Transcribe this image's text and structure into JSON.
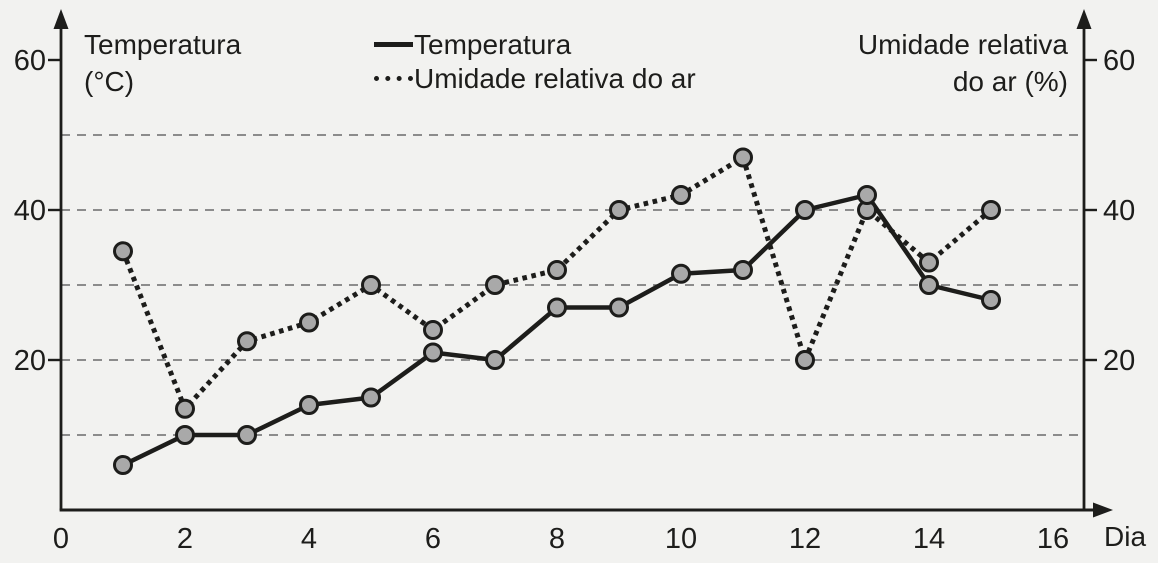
{
  "titles": {
    "left_line1": "Temperatura",
    "left_line2": "(°C)",
    "right_line1": "Umidade relativa",
    "right_line2": "do ar (%)",
    "x_axis": "Dia"
  },
  "legend": {
    "temperature_label": "Temperatura",
    "humidity_label": "Umidade relativa do ar"
  },
  "colors": {
    "ink": "#1d1d1b",
    "marker_fill": "#a9a9a9",
    "grid": "#6a6a6a",
    "background": "#f2f2f0"
  },
  "axes": {
    "left_ticks": [
      20,
      40,
      60
    ],
    "right_ticks": [
      20,
      40,
      60
    ],
    "x_ticks": [
      0,
      2,
      4,
      6,
      8,
      10,
      12,
      14,
      16
    ],
    "gridlines": [
      10,
      20,
      30,
      40,
      50
    ]
  },
  "chart_data": {
    "type": "line",
    "title": "",
    "xlabel": "Dia",
    "ylabel_left": "Temperatura (°C)",
    "ylabel_right": "Umidade relativa do ar (%)",
    "xlim": [
      0,
      16
    ],
    "ylim": [
      0,
      60
    ],
    "grid": "horizontal-dashed",
    "legend_position": "top-center",
    "x": [
      1,
      2,
      3,
      4,
      5,
      6,
      7,
      8,
      9,
      10,
      11,
      12,
      13,
      14,
      15
    ],
    "series": [
      {
        "name": "Temperatura",
        "style": "solid",
        "values": [
          6,
          10,
          10,
          14,
          15,
          21,
          20,
          27,
          27,
          31.5,
          32,
          40,
          42,
          30,
          28
        ]
      },
      {
        "name": "Umidade relativa do ar",
        "style": "dotted",
        "values": [
          34.5,
          13.5,
          22.5,
          25,
          30,
          24,
          30,
          32,
          40,
          42,
          47,
          20,
          40,
          33,
          40
        ]
      }
    ]
  }
}
